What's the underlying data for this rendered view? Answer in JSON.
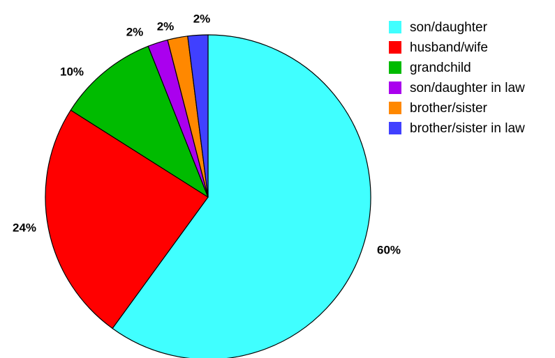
{
  "chart_data": {
    "type": "pie",
    "slices": [
      {
        "label": "son/daughter",
        "value": 60,
        "display": "60%",
        "color": "#40FFFF"
      },
      {
        "label": "husband/wife",
        "value": 24,
        "display": "24%",
        "color": "#FF0000"
      },
      {
        "label": "grandchild",
        "value": 10,
        "display": "10%",
        "color": "#00BB00"
      },
      {
        "label": "son/daughter in law",
        "value": 2,
        "display": "2%",
        "color": "#AA00EE"
      },
      {
        "label": "brother/sister",
        "value": 2,
        "display": "2%",
        "color": "#FF8800"
      },
      {
        "label": "brother/sister in law",
        "value": 2,
        "display": "2%",
        "color": "#4040FF"
      }
    ],
    "legend_position": "top-right"
  }
}
